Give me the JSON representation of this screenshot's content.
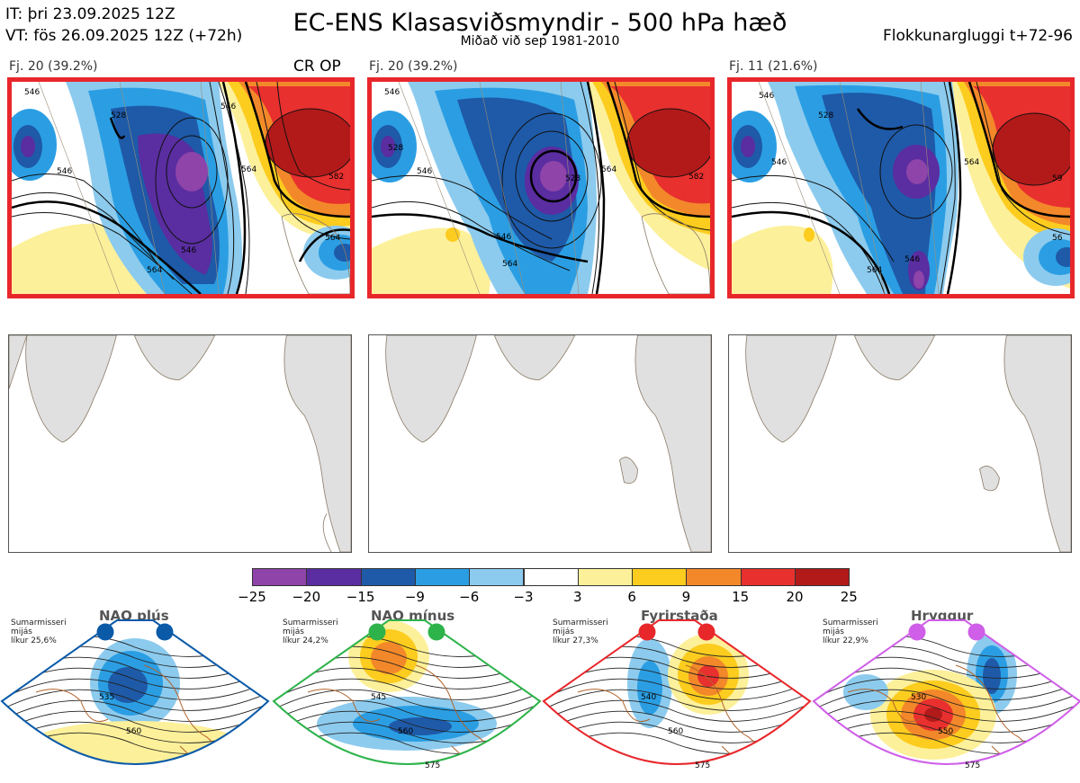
{
  "header": {
    "it": "IT: þri 23.09.2025 12Z",
    "vt": "VT: fös 26.09.2025 12Z  (+72h)",
    "title": "EC-ENS Klasasviðsmyndir - 500 hPa hæð",
    "subtitle": "Miðað við sep 1981-2010",
    "window": "Flokkunargluggi t+72-96"
  },
  "panels": [
    {
      "label": "Fj. 20 (39.2%)",
      "tag": "CR OP",
      "contours": [
        "546",
        "528",
        "546",
        "564",
        "582",
        "546",
        "564",
        "564",
        "546"
      ]
    },
    {
      "label": "Fj. 20 (39.2%)",
      "tag": "",
      "contours": [
        "546",
        "528",
        "546",
        "564",
        "582",
        "546",
        "564",
        "528"
      ]
    },
    {
      "label": "Fj. 11 (21.6%)",
      "tag": "",
      "contours": [
        "546",
        "528",
        "546",
        "564",
        "59",
        "546",
        "564",
        "56"
      ]
    }
  ],
  "colorbar": {
    "colors": [
      "#8e44a8",
      "#5a2da1",
      "#1e5aa8",
      "#2b9ee3",
      "#8ccbee",
      "#ffffff",
      "#fdf09a",
      "#fccc1e",
      "#f3882a",
      "#e8302e",
      "#b21a1a"
    ],
    "ticks": [
      "−25",
      "−20",
      "−15",
      "−9",
      "−6",
      "−3",
      "3",
      "6",
      "9",
      "15",
      "20",
      "25"
    ]
  },
  "regimes": [
    {
      "name": "NAO plús",
      "season": "Sumarmisseri",
      "midseason": "mijás",
      "prob": "líkur 25,6%",
      "color": "#0a5aa8",
      "labels": [
        "535",
        "560"
      ]
    },
    {
      "name": "NAO mínus",
      "season": "Sumarmisseri",
      "midseason": "mijás",
      "prob": "líkur 24,2%",
      "color": "#2db34a",
      "labels": [
        "545",
        "560",
        "575"
      ]
    },
    {
      "name": "Fyrirstaða",
      "season": "Sumarmisseri",
      "midseason": "mijás",
      "prob": "líkur 27,3%",
      "color": "#e8272b",
      "labels": [
        "540",
        "560",
        "575"
      ]
    },
    {
      "name": "Hryggur",
      "season": "Sumarmisseri",
      "midseason": "mijás",
      "prob": "líkur 22,9%",
      "color": "#cf5ee8",
      "labels": [
        "530",
        "550",
        "575"
      ]
    }
  ]
}
